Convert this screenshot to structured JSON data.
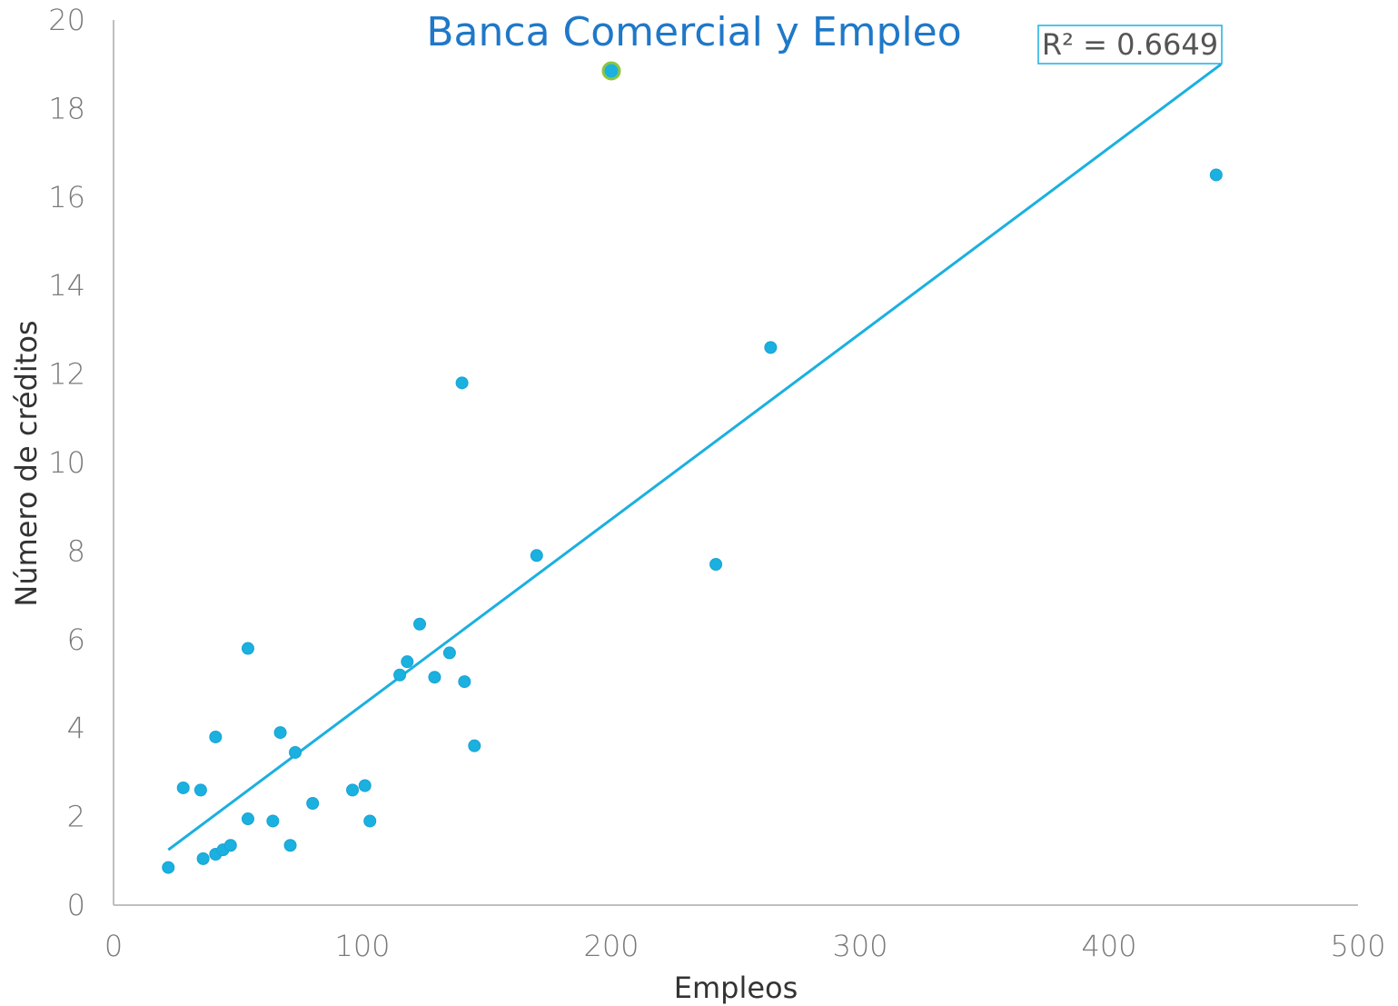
{
  "chart_data": {
    "type": "scatter",
    "title": "Banca Comercial y Empleo",
    "xlabel": "Empleos",
    "ylabel": "Número de créditos",
    "xlim": [
      0,
      500
    ],
    "ylim": [
      0,
      20
    ],
    "x_ticks": [
      "0",
      "100",
      "200",
      "300",
      "400",
      "500"
    ],
    "y_ticks": [
      "0",
      "2",
      "4",
      "6",
      "8",
      "10",
      "12",
      "14",
      "16",
      "18",
      "20"
    ],
    "grid": false,
    "legend": "none",
    "trendline": {
      "type": "linear",
      "x": [
        22,
        445
      ],
      "y": [
        1.25,
        19.0
      ],
      "r2_label": "R² = 0.6649"
    },
    "series": [
      {
        "points": [
          {
            "x": 22,
            "y": 0.85
          },
          {
            "x": 28,
            "y": 2.65
          },
          {
            "x": 35,
            "y": 2.6
          },
          {
            "x": 36,
            "y": 1.05
          },
          {
            "x": 41,
            "y": 1.15
          },
          {
            "x": 41,
            "y": 3.8
          },
          {
            "x": 44,
            "y": 1.25
          },
          {
            "x": 47,
            "y": 1.35
          },
          {
            "x": 54,
            "y": 1.95
          },
          {
            "x": 54,
            "y": 5.8
          },
          {
            "x": 64,
            "y": 1.9
          },
          {
            "x": 67,
            "y": 3.9
          },
          {
            "x": 71,
            "y": 1.35
          },
          {
            "x": 73,
            "y": 3.45
          },
          {
            "x": 80,
            "y": 2.3
          },
          {
            "x": 96,
            "y": 2.6
          },
          {
            "x": 101,
            "y": 2.7
          },
          {
            "x": 103,
            "y": 1.9
          },
          {
            "x": 115,
            "y": 5.2
          },
          {
            "x": 118,
            "y": 5.5
          },
          {
            "x": 123,
            "y": 6.35
          },
          {
            "x": 129,
            "y": 5.15
          },
          {
            "x": 135,
            "y": 5.7
          },
          {
            "x": 140,
            "y": 11.8
          },
          {
            "x": 141,
            "y": 5.05
          },
          {
            "x": 145,
            "y": 3.6
          },
          {
            "x": 170,
            "y": 7.9
          },
          {
            "x": 242,
            "y": 7.7
          },
          {
            "x": 264,
            "y": 12.6
          },
          {
            "x": 443,
            "y": 16.5
          }
        ]
      },
      {
        "highlight": true,
        "points": [
          {
            "x": 200,
            "y": 18.85
          }
        ]
      }
    ]
  },
  "colors": {
    "point": "#1ab0e0",
    "point_stroke": "#1aa4d3",
    "highlight_fill": "#1ab0e0",
    "highlight_stroke": "#8cc63f",
    "trendline": "#1ab0e0",
    "axis": "#bfbfbf",
    "title": "#1f78c8",
    "r2_border": "#1ab0e0"
  }
}
